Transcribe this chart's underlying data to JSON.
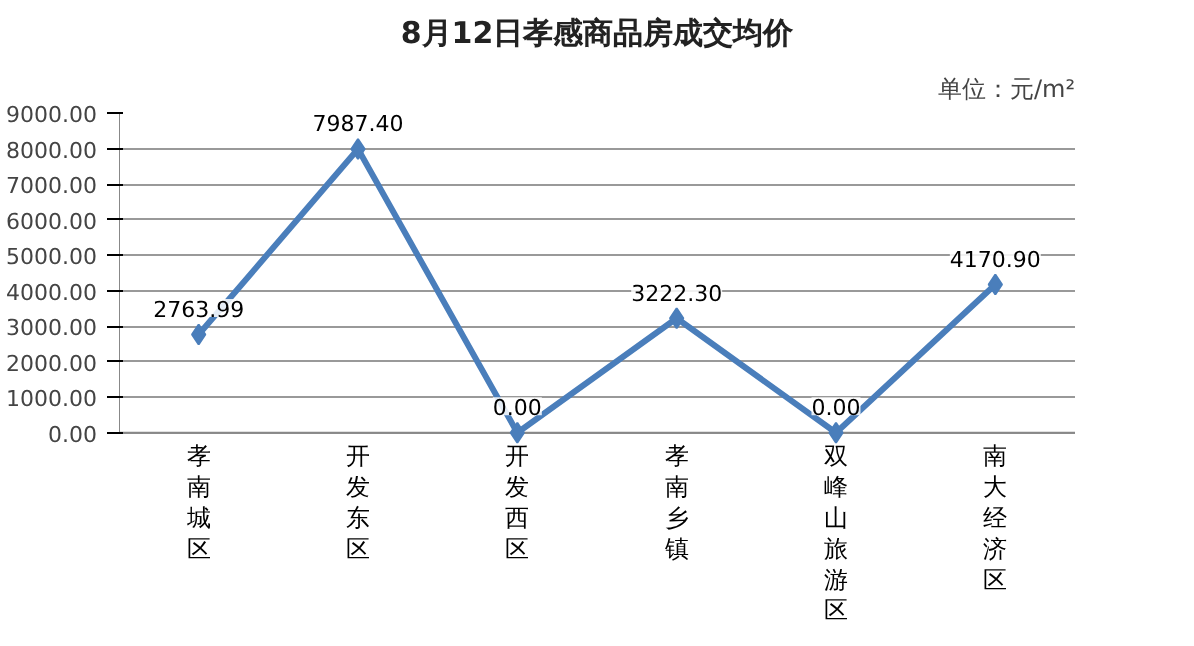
{
  "chart_data": {
    "type": "line",
    "title": "8月12日孝感商品房成交均价",
    "subtitle": "单位：元/m²",
    "categories": [
      "孝南城区",
      "开发东区",
      "开发西区",
      "孝南乡镇",
      "双峰山旅游区",
      "南大经济区"
    ],
    "series": [
      {
        "color": "#4a7ebb",
        "values": [
          2763.99,
          7987.4,
          0.0,
          3222.3,
          0.0,
          4170.9
        ],
        "value_labels": [
          "2763.99",
          "7987.40",
          "0.00",
          "3222.30",
          "0.00",
          "4170.90"
        ]
      }
    ],
    "ylim": [
      0,
      9000
    ],
    "yticks": [
      {
        "value": 0,
        "label": "0.00"
      },
      {
        "value": 1000,
        "label": "1000.00"
      },
      {
        "value": 2000,
        "label": "2000.00"
      },
      {
        "value": 3000,
        "label": "3000.00"
      },
      {
        "value": 4000,
        "label": "4000.00"
      },
      {
        "value": 5000,
        "label": "5000.00"
      },
      {
        "value": 6000,
        "label": "6000.00"
      },
      {
        "value": 7000,
        "label": "7000.00"
      },
      {
        "value": 8000,
        "label": "8000.00"
      },
      {
        "value": 9000,
        "label": "9000.00"
      }
    ],
    "grid": "y",
    "marker": "diamond",
    "line_style": "solid"
  }
}
